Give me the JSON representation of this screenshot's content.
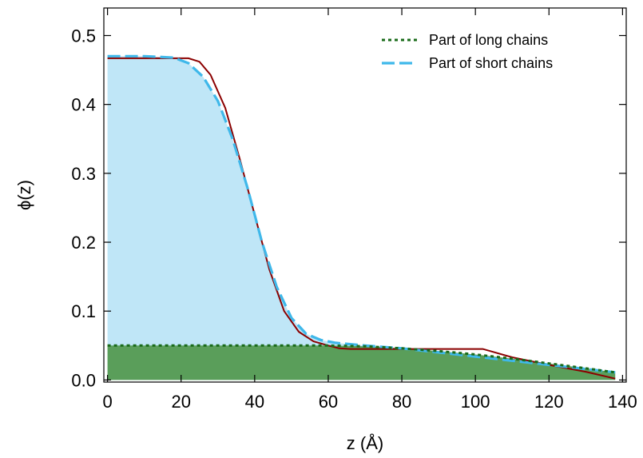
{
  "chart_data": {
    "type": "line",
    "title": "",
    "xlabel": "z (Å)",
    "ylabel": "ϕ(z)",
    "xlim": [
      -1,
      141
    ],
    "ylim": [
      -0.003,
      0.54
    ],
    "xticks": [
      0,
      20,
      40,
      60,
      80,
      100,
      120,
      140
    ],
    "xtick_labels": [
      "0",
      "20",
      "40",
      "60",
      "80",
      "100",
      "120",
      "140"
    ],
    "yticks": [
      0.0,
      0.1,
      0.2,
      0.3,
      0.4,
      0.5
    ],
    "ytick_labels": [
      "0.0",
      "0.1",
      "0.2",
      "0.3",
      "0.4",
      "0.5"
    ],
    "grid": false,
    "legend_position": "top-right",
    "colors": {
      "long": "#1a6b1a",
      "short": "#3fb8ea",
      "total": "#8b0000",
      "long_fill": "#5a9e5a",
      "short_fill": "#bfe6f7"
    },
    "series": [
      {
        "name": "Part of long chains",
        "style": "dotted",
        "x": [
          0,
          20,
          40,
          60,
          70,
          80,
          90,
          100,
          110,
          120,
          130,
          138
        ],
        "y": [
          0.05,
          0.05,
          0.05,
          0.05,
          0.049,
          0.046,
          0.042,
          0.037,
          0.031,
          0.024,
          0.017,
          0.011
        ]
      },
      {
        "name": "Part of short chains",
        "style": "dashed",
        "x": [
          0,
          10,
          18,
          22,
          26,
          30,
          34,
          38,
          42,
          46,
          50,
          54,
          58,
          62,
          66,
          70,
          80,
          90,
          100,
          110,
          120,
          130,
          138
        ],
        "y": [
          0.47,
          0.47,
          0.468,
          0.46,
          0.44,
          0.405,
          0.35,
          0.28,
          0.2,
          0.135,
          0.09,
          0.067,
          0.058,
          0.054,
          0.052,
          0.05,
          0.046,
          0.04,
          0.034,
          0.028,
          0.022,
          0.016,
          0.011
        ]
      },
      {
        "name": "",
        "style": "solid",
        "x": [
          0,
          22,
          25,
          28,
          32,
          36,
          40,
          44,
          48,
          52,
          56,
          60,
          63,
          66,
          80,
          102,
          110,
          120,
          130,
          138
        ],
        "y": [
          0.467,
          0.467,
          0.462,
          0.443,
          0.395,
          0.32,
          0.24,
          0.16,
          0.1,
          0.07,
          0.056,
          0.05,
          0.046,
          0.045,
          0.045,
          0.045,
          0.033,
          0.022,
          0.012,
          0.002
        ]
      }
    ],
    "legend": [
      {
        "label": "Part of long chains"
      },
      {
        "label": "Part of short chains"
      }
    ]
  }
}
